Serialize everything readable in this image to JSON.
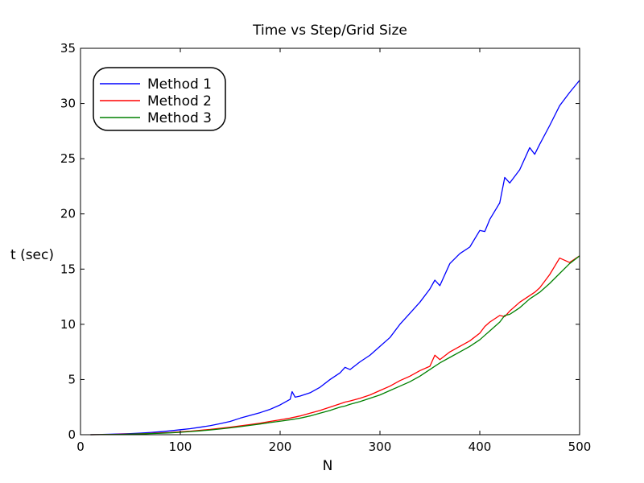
{
  "chart_data": {
    "type": "line",
    "title": "Time vs Step/Grid Size",
    "xlabel": "N",
    "ylabel": "t (sec)",
    "xlim": [
      0,
      500
    ],
    "ylim": [
      0,
      35
    ],
    "xticks": [
      0,
      100,
      200,
      300,
      400,
      500
    ],
    "yticks": [
      0,
      5,
      10,
      15,
      20,
      25,
      30,
      35
    ],
    "grid": false,
    "legend_position": "top-left",
    "x": [
      10,
      20,
      30,
      40,
      50,
      60,
      70,
      80,
      90,
      100,
      110,
      120,
      130,
      140,
      150,
      160,
      170,
      180,
      190,
      200,
      210,
      212,
      215,
      220,
      230,
      240,
      250,
      260,
      265,
      270,
      280,
      290,
      300,
      310,
      320,
      330,
      340,
      350,
      355,
      360,
      370,
      380,
      390,
      400,
      405,
      410,
      420,
      425,
      430,
      440,
      450,
      455,
      460,
      470,
      480,
      490,
      500
    ],
    "series": [
      {
        "name": "Method 1",
        "color": "#0000ff",
        "values": [
          0.0,
          0.02,
          0.04,
          0.07,
          0.1,
          0.14,
          0.2,
          0.27,
          0.35,
          0.45,
          0.55,
          0.68,
          0.82,
          1.0,
          1.2,
          1.5,
          1.75,
          2.0,
          2.3,
          2.7,
          3.2,
          3.9,
          3.4,
          3.5,
          3.8,
          4.3,
          5.0,
          5.6,
          6.1,
          5.9,
          6.6,
          7.2,
          8.0,
          8.8,
          10.0,
          11.0,
          12.0,
          13.2,
          14.0,
          13.5,
          15.5,
          16.4,
          17.0,
          18.5,
          18.4,
          19.5,
          21.0,
          23.3,
          22.8,
          24.0,
          26.0,
          25.4,
          26.3,
          28.0,
          29.8,
          31.0,
          32.1
        ]
      },
      {
        "name": "Method 2",
        "color": "#ff0000",
        "values": [
          0.0,
          0.01,
          0.02,
          0.04,
          0.06,
          0.08,
          0.12,
          0.16,
          0.2,
          0.26,
          0.32,
          0.4,
          0.48,
          0.58,
          0.68,
          0.8,
          0.92,
          1.05,
          1.2,
          1.35,
          1.5,
          1.55,
          1.6,
          1.7,
          1.95,
          2.2,
          2.5,
          2.8,
          2.95,
          3.05,
          3.3,
          3.6,
          4.0,
          4.4,
          4.9,
          5.3,
          5.8,
          6.2,
          7.2,
          6.8,
          7.5,
          8.0,
          8.5,
          9.2,
          9.8,
          10.2,
          10.8,
          10.7,
          11.2,
          12.0,
          12.6,
          12.9,
          13.3,
          14.5,
          16.0,
          15.6,
          16.2
        ]
      },
      {
        "name": "Method 3",
        "color": "#008000",
        "values": [
          0.0,
          0.01,
          0.02,
          0.03,
          0.05,
          0.07,
          0.1,
          0.13,
          0.17,
          0.22,
          0.28,
          0.35,
          0.43,
          0.52,
          0.62,
          0.73,
          0.85,
          0.97,
          1.1,
          1.22,
          1.35,
          1.38,
          1.42,
          1.5,
          1.7,
          1.95,
          2.2,
          2.5,
          2.6,
          2.75,
          3.0,
          3.3,
          3.6,
          4.0,
          4.4,
          4.8,
          5.3,
          5.9,
          6.2,
          6.5,
          7.0,
          7.5,
          8.0,
          8.6,
          9.0,
          9.4,
          10.2,
          10.8,
          10.9,
          11.5,
          12.3,
          12.6,
          12.9,
          13.7,
          14.6,
          15.5,
          16.2
        ]
      }
    ]
  }
}
